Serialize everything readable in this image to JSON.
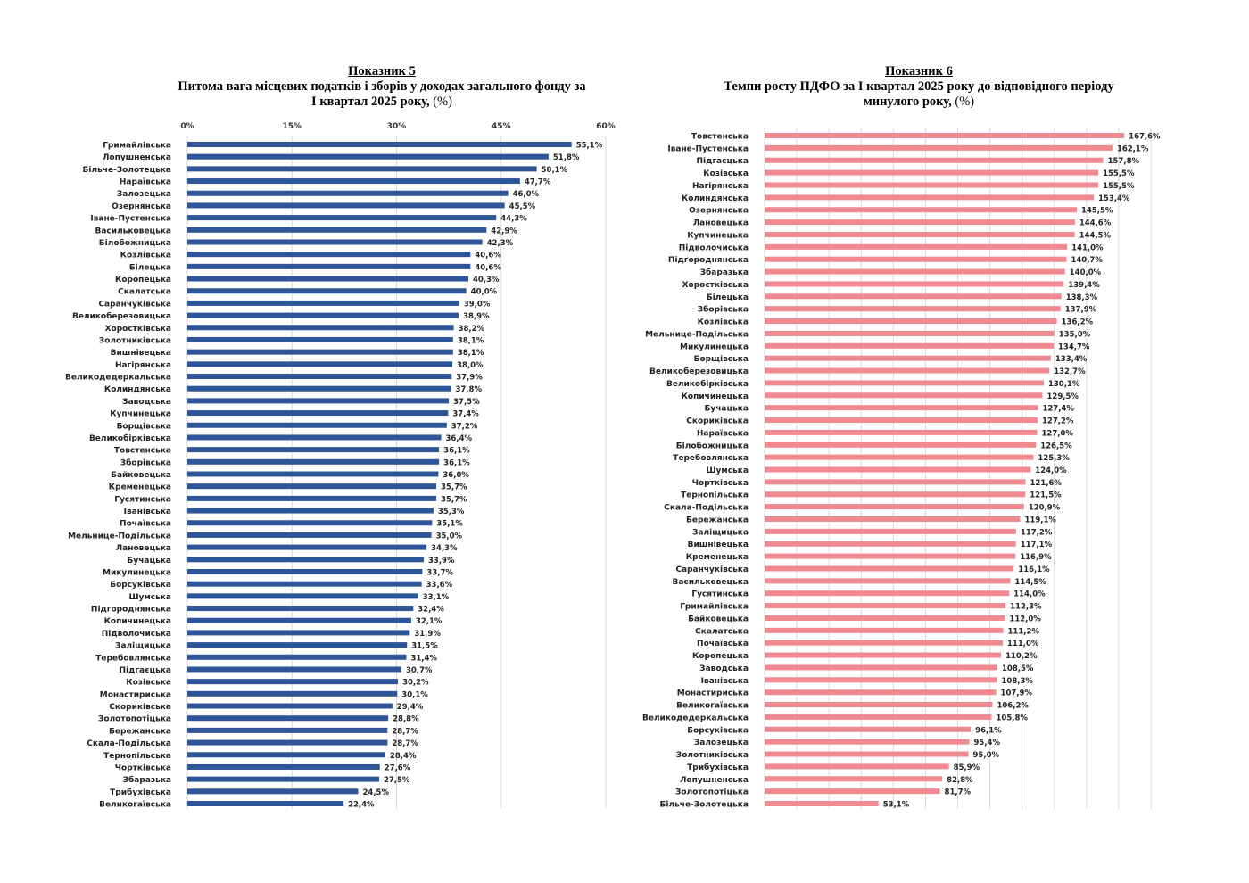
{
  "chart_data": [
    {
      "type": "bar",
      "orientation": "horizontal",
      "title": "Показник 5",
      "subtitle": "Питома вага місцевих податків і зборів у доходах загального фонду  за",
      "subtitle_line2": "І квартал 2025 року,",
      "unit_label": "(%)",
      "xlim": [
        0,
        60
      ],
      "x_ticks": [
        "0%",
        "15%",
        "30%",
        "45%",
        "60%"
      ],
      "x_tick_values": [
        0,
        15,
        30,
        45,
        60
      ],
      "axis_position": "top",
      "grid": true,
      "bar_color": "#2e5597",
      "categories": [
        "Гримайлівська",
        "Лопушненська",
        "Більче-Золотецька",
        "Нараївська",
        "Залозецька",
        "Озернянська",
        "Іване-Пустенська",
        "Васильковецька",
        "Білобожницька",
        "Козлівська",
        "Білецька",
        "Коропецька",
        "Скалатська",
        "Саранчуківська",
        "Великоберезовицька",
        "Хоростківська",
        "Золотниківська",
        "Вишнівецька",
        "Нагірянська",
        "Великодедеркальська",
        "Колиндянська",
        "Заводська",
        "Купчинецька",
        "Борщівська",
        "Великобірківська",
        "Товстенська",
        "Зборівська",
        "Байковецька",
        "Кременецька",
        "Гусятинська",
        "Іванівська",
        "Почаївська",
        "Мельнице-Подільська",
        "Лановецька",
        "Бучацька",
        "Микулинецька",
        "Борсуківська",
        "Шумська",
        "Підгороднянська",
        "Копичинецька",
        "Підволочиська",
        "Заліщицька",
        "Теребовлянська",
        "Підгаєцька",
        "Козівська",
        "Монастириська",
        "Скориківська",
        "Золотопотіцька",
        "Бережанська",
        "Скала-Подільська",
        "Тернопільська",
        "Чортківська",
        "Збаразька",
        "Трибухівська",
        "Великогаївська"
      ],
      "values": [
        55.1,
        51.8,
        50.1,
        47.7,
        46.0,
        45.5,
        44.3,
        42.9,
        42.3,
        40.6,
        40.6,
        40.3,
        40.0,
        39.0,
        38.9,
        38.2,
        38.1,
        38.1,
        38.0,
        37.9,
        37.8,
        37.5,
        37.4,
        37.2,
        36.4,
        36.1,
        36.1,
        36.0,
        35.7,
        35.7,
        35.3,
        35.1,
        35.0,
        34.3,
        33.9,
        33.7,
        33.6,
        33.1,
        32.4,
        32.1,
        31.9,
        31.5,
        31.4,
        30.7,
        30.2,
        30.1,
        29.4,
        28.8,
        28.7,
        28.7,
        28.4,
        27.6,
        27.5,
        24.5,
        22.4
      ],
      "data_labels": [
        "55,1%",
        "51,8%",
        "50,1%",
        "47,7%",
        "46,0%",
        "45,5%",
        "44,3%",
        "42,9%",
        "42,3%",
        "40,6%",
        "40,6%",
        "40,3%",
        "40,0%",
        "39,0%",
        "38,9%",
        "38,2%",
        "38,1%",
        "38,1%",
        "38,0%",
        "37,9%",
        "37,8%",
        "37,5%",
        "37,4%",
        "37,2%",
        "36,4%",
        "36,1%",
        "36,1%",
        "36,0%",
        "35,7%",
        "35,7%",
        "35,3%",
        "35,1%",
        "35,0%",
        "34,3%",
        "33,9%",
        "33,7%",
        "33,6%",
        "33,1%",
        "32,4%",
        "32,1%",
        "31,9%",
        "31,5%",
        "31,4%",
        "30,7%",
        "30,2%",
        "30,1%",
        "29,4%",
        "28,8%",
        "28,7%",
        "28,7%",
        "28,4%",
        "27,6%",
        "27,5%",
        "24,5%",
        "22,4%"
      ]
    },
    {
      "type": "bar",
      "orientation": "horizontal",
      "title": "Показник 6",
      "subtitle": "Темпи росту ПДФО за І квартал 2025 року до відповідного періоду",
      "subtitle_line2": "минулого року,",
      "unit_label": "(%)",
      "xlim": [
        0,
        180
      ],
      "x_ticks": [],
      "grid": true,
      "bar_color": "#f08a90",
      "categories": [
        "Товстенська",
        "Іване-Пустенська",
        "Підгаєцька",
        "Козівська",
        "Нагірянська",
        "Колиндянська",
        "Озернянська",
        "Лановецька",
        "Купчинецька",
        "Підволочиська",
        "Підгороднянська",
        "Збаразька",
        "Хоростківська",
        "Білецька",
        "Зборівська",
        "Козлівська",
        "Мельнице-Подільська",
        "Микулинецька",
        "Борщівська",
        "Великоберезовицька",
        "Великобірківська",
        "Копичинецька",
        "Бучацька",
        "Скориківська",
        "Нараївська",
        "Білобожницька",
        "Теребовлянська",
        "Шумська",
        "Чортківська",
        "Тернопільська",
        "Скала-Подільська",
        "Бережанська",
        "Заліщицька",
        "Вишнівецька",
        "Кременецька",
        "Саранчуківська",
        "Васильковецька",
        "Гусятинська",
        "Гримайлівська",
        "Байковецька",
        "Скалатська",
        "Почаївська",
        "Коропецька",
        "Заводська",
        "Іванівська",
        "Монастириська",
        "Великогаївська",
        "Великодедеркальська",
        "Борсуківська",
        "Залозецька",
        "Золотниківська",
        "Трибухівська",
        "Лопушненська",
        "Золотопотіцька",
        "Більче-Золотецька"
      ],
      "values": [
        167.6,
        162.1,
        157.8,
        155.5,
        155.5,
        153.4,
        145.5,
        144.6,
        144.5,
        141.0,
        140.7,
        140.0,
        139.4,
        138.3,
        137.9,
        136.2,
        135.0,
        134.7,
        133.4,
        132.7,
        130.1,
        129.5,
        127.4,
        127.2,
        127.0,
        126.5,
        125.3,
        124.0,
        121.6,
        121.5,
        120.9,
        119.1,
        117.2,
        117.1,
        116.9,
        116.1,
        114.5,
        114.0,
        112.3,
        112.0,
        111.2,
        111.0,
        110.2,
        108.5,
        108.3,
        107.9,
        106.2,
        105.8,
        96.1,
        95.4,
        95.0,
        85.9,
        82.8,
        81.7,
        53.1
      ],
      "data_labels": [
        "167,6%",
        "162,1%",
        "157,8%",
        "155,5%",
        "155,5%",
        "153,4%",
        "145,5%",
        "144,6%",
        "144,5%",
        "141,0%",
        "140,7%",
        "140,0%",
        "139,4%",
        "138,3%",
        "137,9%",
        "136,2%",
        "135,0%",
        "134,7%",
        "133,4%",
        "132,7%",
        "130,1%",
        "129,5%",
        "127,4%",
        "127,2%",
        "127,0%",
        "126,5%",
        "125,3%",
        "124,0%",
        "121,6%",
        "121,5%",
        "120,9%",
        "119,1%",
        "117,2%",
        "117,1%",
        "116,9%",
        "116,1%",
        "114,5%",
        "114,0%",
        "112,3%",
        "112,0%",
        "111,2%",
        "111,0%",
        "110,2%",
        "108,5%",
        "108,3%",
        "107,9%",
        "106,2%",
        "105,8%",
        "96,1%",
        "95,4%",
        "95,0%",
        "85,9%",
        "82,8%",
        "81,7%",
        "53,1%"
      ]
    }
  ]
}
